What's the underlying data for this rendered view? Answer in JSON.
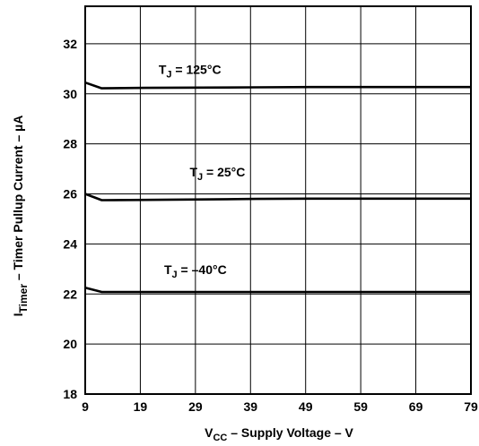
{
  "chart_data": {
    "type": "line",
    "xlabel": {
      "main": "V",
      "sub": "CC",
      "rest": " – Supply Voltage – V"
    },
    "ylabel": {
      "main": "I",
      "sub": "Timer",
      "rest": "  – Timer Pullup Current – µA"
    },
    "xlim": [
      9,
      79
    ],
    "ylim": [
      18,
      33.5
    ],
    "x_ticks": [
      "9",
      "19",
      "29",
      "39",
      "49",
      "59",
      "69",
      "79"
    ],
    "y_ticks": [
      "18",
      "20",
      "22",
      "24",
      "26",
      "28",
      "30",
      "32"
    ],
    "x_grid": [
      9,
      19,
      29,
      39,
      49,
      59,
      69,
      79
    ],
    "y_grid": [
      18,
      20,
      22,
      24,
      26,
      28,
      30,
      32
    ],
    "grid": true,
    "series": [
      {
        "name": "T_J = 125°C",
        "label_main": "T",
        "label_sub": "J",
        "label_rest": " = 125°C",
        "label_at": [
          28.0,
          30.8
        ],
        "x": [
          9,
          12,
          20,
          30,
          40,
          50,
          60,
          70,
          79
        ],
        "y": [
          30.45,
          30.22,
          30.24,
          30.25,
          30.26,
          30.27,
          30.27,
          30.27,
          30.27
        ]
      },
      {
        "name": "T_J = 25°C",
        "label_main": "T",
        "label_sub": "J",
        "label_rest": " = 25°C",
        "label_at": [
          33.0,
          26.7
        ],
        "x": [
          9,
          12,
          20,
          30,
          40,
          50,
          60,
          70,
          79
        ],
        "y": [
          26.0,
          25.75,
          25.76,
          25.78,
          25.8,
          25.81,
          25.81,
          25.81,
          25.81
        ]
      },
      {
        "name": "T_J = –40°C",
        "label_main": "T",
        "label_sub": "J",
        "label_rest": " = –40°C",
        "label_at": [
          29.0,
          22.8
        ],
        "x": [
          9,
          12,
          20,
          30,
          40,
          50,
          60,
          70,
          79
        ],
        "y": [
          22.25,
          22.08,
          22.08,
          22.08,
          22.08,
          22.08,
          22.08,
          22.08,
          22.08
        ]
      }
    ]
  }
}
